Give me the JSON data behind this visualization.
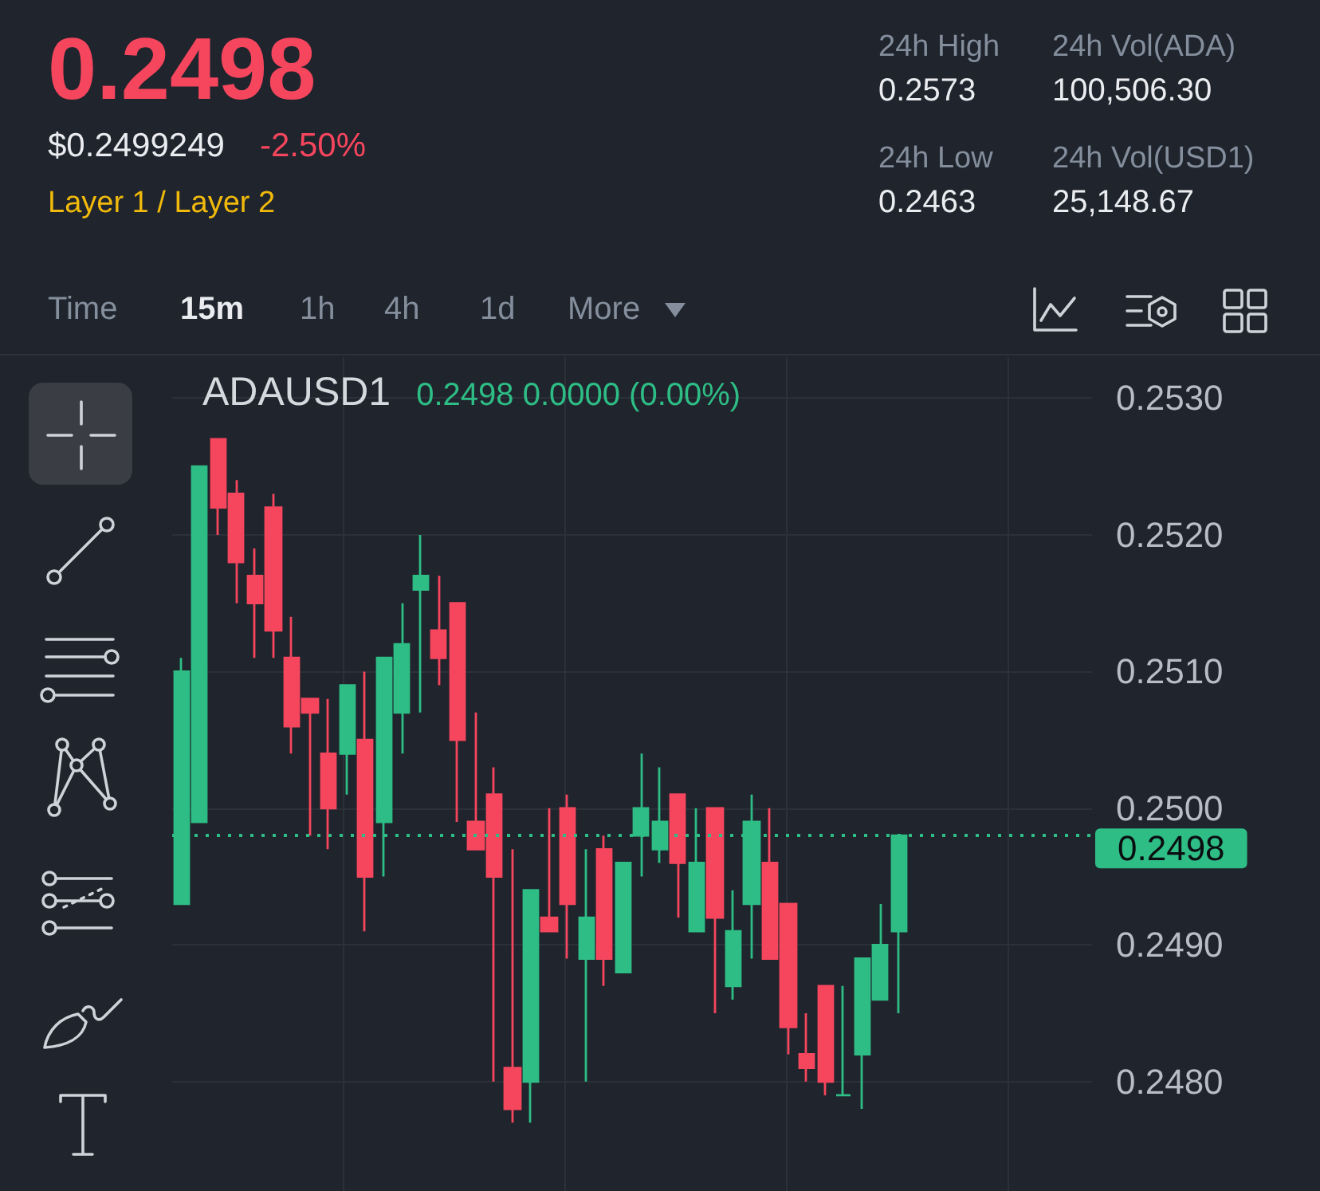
{
  "chart_data": {
    "type": "candlestick",
    "title": "ADAUSD1",
    "subtitle": "0.2498 0.0000 (0.00%)",
    "annotations": [
      "0.2498",
      "$0.2499249",
      "-2.50%",
      "Layer 1 / Layer 2",
      "24h High",
      "0.2573",
      "24h Vol(ADA)",
      "100,506.30",
      "24h Low",
      "0.2463",
      "24h Vol(USD1)",
      "25,148.67",
      "Time",
      "15m",
      "1h",
      "4h",
      "1d",
      "More"
    ],
    "categories": [
      null,
      null,
      null,
      null,
      null,
      null,
      null,
      null,
      null,
      null,
      null,
      null,
      null,
      null,
      null,
      null,
      null,
      null,
      null,
      null,
      null,
      null,
      null,
      null,
      null,
      null,
      null,
      null,
      null,
      null,
      null,
      null,
      null,
      null,
      null,
      null,
      null,
      null,
      null,
      null,
      null,
      null,
      null,
      null,
      null,
      null,
      null,
      null,
      null,
      null
    ],
    "ohlc": [
      [
        0.2493,
        0.2511,
        0.2493,
        0.251
      ],
      [
        0.2499,
        0.2525,
        0.2499,
        0.2525
      ],
      [
        0.2527,
        0.2527,
        0.252,
        0.2522
      ],
      [
        0.2523,
        0.2524,
        0.2515,
        0.2518
      ],
      [
        0.2517,
        0.2519,
        0.2511,
        0.2515
      ],
      [
        0.2522,
        0.2523,
        0.2511,
        0.2513
      ],
      [
        0.2511,
        0.2514,
        0.2504,
        0.2506
      ],
      [
        0.2508,
        0.2508,
        0.2498,
        0.2507
      ],
      [
        0.2504,
        0.2508,
        0.2497,
        0.25
      ],
      [
        0.2504,
        0.2509,
        0.2501,
        0.2509
      ],
      [
        0.2505,
        0.251,
        0.2491,
        0.2495
      ],
      [
        0.2499,
        0.2511,
        0.2495,
        0.2511
      ],
      [
        0.2507,
        0.2515,
        0.2504,
        0.2512
      ],
      [
        0.2516,
        0.252,
        0.2507,
        0.2517
      ],
      [
        0.2513,
        0.2517,
        0.2509,
        0.2511
      ],
      [
        0.2515,
        0.2515,
        0.2499,
        0.2505
      ],
      [
        0.2499,
        0.2507,
        0.2497,
        0.2497
      ],
      [
        0.2501,
        0.2503,
        0.248,
        0.2495
      ],
      [
        0.2481,
        0.2497,
        0.2477,
        0.2478
      ],
      [
        0.248,
        0.2494,
        0.2477,
        0.2494
      ],
      [
        0.2492,
        0.25,
        0.2491,
        0.2491
      ],
      [
        0.25,
        0.2501,
        0.2489,
        0.2493
      ],
      [
        0.2489,
        0.2497,
        0.248,
        0.2492
      ],
      [
        0.2497,
        0.2498,
        0.2487,
        0.2489
      ],
      [
        0.2488,
        0.2496,
        0.2488,
        0.2496
      ],
      [
        0.2498,
        0.2504,
        0.2495,
        0.25
      ],
      [
        0.2497,
        0.2503,
        0.2496,
        0.2499
      ],
      [
        0.2501,
        0.2501,
        0.2492,
        0.2496
      ],
      [
        0.2491,
        0.25,
        0.2491,
        0.2496
      ],
      [
        0.25,
        0.25,
        0.2485,
        0.2492
      ],
      [
        0.2487,
        0.2494,
        0.2486,
        0.2491
      ],
      [
        0.2493,
        0.2501,
        0.2489,
        0.2499
      ],
      [
        0.2496,
        0.25,
        0.2489,
        0.2489
      ],
      [
        0.2493,
        0.2493,
        0.2482,
        0.2484
      ],
      [
        0.2482,
        0.2485,
        0.248,
        0.2481
      ],
      [
        0.2487,
        0.2487,
        0.2479,
        0.248
      ],
      [
        0.2479,
        0.2487,
        0.2479,
        0.2479
      ],
      [
        0.2482,
        0.2489,
        0.2478,
        0.2489
      ],
      [
        0.2486,
        0.2493,
        0.2486,
        0.249
      ],
      [
        0.2491,
        0.2498,
        0.2485,
        0.2498
      ],
      null,
      null,
      null,
      null,
      null,
      null,
      null,
      null,
      null,
      null
    ],
    "colors": [
      "#2ebd85",
      "#2ebd85",
      "#f6465d",
      "#f6465d",
      "#f6465d",
      "#f6465d",
      "#f6465d",
      "#f6465d",
      "#f6465d",
      "#2ebd85",
      "#f6465d",
      "#2ebd85",
      "#2ebd85",
      "#2ebd85",
      "#f6465d",
      "#f6465d",
      "#f6465d",
      "#f6465d",
      "#f6465d",
      "#2ebd85",
      "#f6465d",
      "#f6465d",
      "#2ebd85",
      "#f6465d",
      "#2ebd85",
      "#2ebd85",
      "#2ebd85",
      "#f6465d",
      "#2ebd85",
      "#f6465d",
      "#2ebd85",
      "#2ebd85",
      "#f6465d",
      "#f6465d",
      "#f6465d",
      "#f6465d",
      "#2ebd85",
      "#2ebd85",
      "#2ebd85",
      "#2ebd85",
      null,
      null,
      null,
      null,
      null,
      null,
      null,
      null,
      null,
      null
    ],
    "ylim": [
      0.2472,
      0.2533
    ],
    "yticks": [
      {
        "value": 0.248,
        "label": "0.2480"
      },
      {
        "value": 0.249,
        "label": "0.2490"
      },
      {
        "value": 0.25,
        "label": "0.2500"
      },
      {
        "value": 0.251,
        "label": "0.2510"
      },
      {
        "value": 0.252,
        "label": "0.2520"
      },
      {
        "value": 0.253,
        "label": "0.2530"
      }
    ],
    "tick_labels": "y",
    "grid": true,
    "ref_lines": [
      {
        "axis": "y",
        "value": 0.2498,
        "label": "0.2498",
        "color": "#2ebd85",
        "line_style": "dotted"
      }
    ]
  }
}
